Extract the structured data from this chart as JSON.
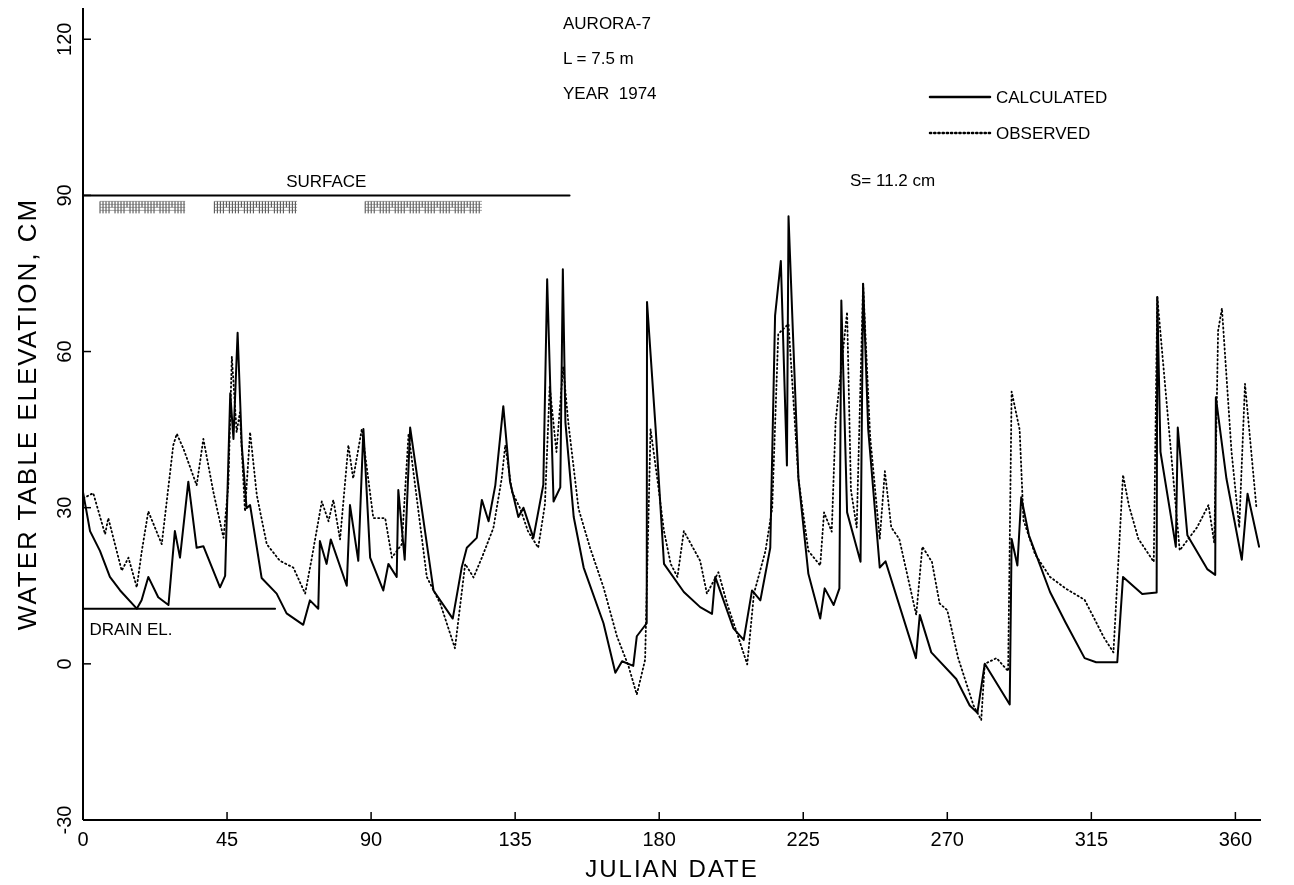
{
  "chart_data": {
    "type": "line",
    "xlabel": "JULIAN DATE",
    "ylabel": "WATER TABLE ELEVATION, CM",
    "xlim": [
      0,
      368
    ],
    "xticks": [
      0,
      45,
      90,
      135,
      180,
      225,
      270,
      315,
      360
    ],
    "ylim": [
      -30,
      126
    ],
    "yticks": [
      -30,
      0,
      30,
      60,
      90,
      120
    ],
    "legend": "top right",
    "grid": false,
    "annotations": [
      "AURORA-7",
      "L = 7.5 m",
      "YEAR  1974",
      "S= 11.2 cm",
      {
        "text": "SURFACE",
        "x": 76,
        "y": 90
      },
      {
        "text": "DRAIN EL.",
        "x": 2,
        "y": 10.6
      }
    ],
    "series": [
      {
        "name": "CALCULATED",
        "color": "#000000",
        "line_style": "solid",
        "x": [
          0,
          2.2,
          5.3,
          8.4,
          11.6,
          16.8,
          18.3,
          20.4,
          23.5,
          26.7,
          28.7,
          30.3,
          32.9,
          35.5,
          37.6,
          42.8,
          44.4,
          46,
          47,
          48.3,
          49.6,
          51.1,
          52.2,
          55.8,
          60.5,
          63.6,
          68.8,
          70.9,
          73.5,
          74,
          76.1,
          77.4,
          82.4,
          83.4,
          86,
          87.6,
          89.7,
          93.8,
          95.4,
          98,
          98.5,
          100.5,
          102.2,
          109.5,
          115.5,
          118.3,
          119.9,
          123,
          124.6,
          126.7,
          128.8,
          131.3,
          133.4,
          136,
          137.6,
          140.7,
          143.8,
          145,
          147,
          149.1,
          149.9,
          150.7,
          153.3,
          156.4,
          162.6,
          166.3,
          168.4,
          171.9,
          173,
          176.1,
          176.2,
          178.9,
          181.5,
          187.7,
          192.8,
          196.5,
          197.5,
          203.2,
          206.4,
          209,
          211.6,
          214.7,
          216.2,
          218,
          219.9,
          220.4,
          223.5,
          226.6,
          230.3,
          231.7,
          234.5,
          236.3,
          236.9,
          238.7,
          242.9,
          243.7,
          245.3,
          248.9,
          250.7,
          260.2,
          261.4,
          265,
          272.8,
          277,
          279.4,
          281.7,
          289.5,
          290.1,
          291.9,
          293.1,
          295.5,
          302.1,
          306.9,
          312.9,
          316.5,
          323.1,
          324.9,
          330.9,
          335.4,
          335.6,
          336.6,
          341.4,
          342,
          345,
          351.2,
          353.7,
          353.9,
          357.2,
          362,
          363.8,
          367.4
        ],
        "values": [
          33,
          25.5,
          21.7,
          16.7,
          14.1,
          10.6,
          12.2,
          16.7,
          12.8,
          11.3,
          25.5,
          20.4,
          35,
          22.3,
          22.6,
          14.7,
          16.9,
          52,
          43.2,
          63.6,
          42,
          29.9,
          30.5,
          16.5,
          13.5,
          9.7,
          7.5,
          12.2,
          10.6,
          23.6,
          19.2,
          23.9,
          15,
          30.5,
          19.8,
          45.1,
          20.4,
          14.1,
          19.2,
          16.7,
          33.4,
          20,
          45.4,
          14.1,
          8.7,
          18.5,
          22.3,
          24.2,
          31.5,
          27.4,
          34.3,
          49.5,
          35,
          28.2,
          30,
          24.2,
          34.4,
          73.9,
          31.2,
          33.9,
          75.8,
          46.4,
          28.2,
          18.5,
          7.8,
          -1.7,
          0.5,
          -0.4,
          5.3,
          7.8,
          69.5,
          45.1,
          19.2,
          13.8,
          10.9,
          9.6,
          16.7,
          6.8,
          4.6,
          14.1,
          12.2,
          22.3,
          66.9,
          77.4,
          38.1,
          86,
          35.6,
          17.3,
          8.7,
          14.5,
          11.3,
          14.5,
          69.8,
          29.1,
          19.6,
          73,
          45,
          18.5,
          19.7,
          1.1,
          9.4,
          2.2,
          -2.9,
          -8,
          -9.4,
          0,
          -7.8,
          24,
          18.9,
          32,
          24.7,
          13.8,
          8,
          1.1,
          0.3,
          0.3,
          16.7,
          13.4,
          13.7,
          70.5,
          40.7,
          22.5,
          45.4,
          24.7,
          18.2,
          17.1,
          51.2,
          35.6,
          20,
          32.7,
          22.5
        ]
      },
      {
        "name": "OBSERVED",
        "color": "#000000",
        "line_style": "dotted",
        "x": [
          0.1,
          3.2,
          6.9,
          7.9,
          12.1,
          14.2,
          16.8,
          18.3,
          20.4,
          24.6,
          28.2,
          29.3,
          31.4,
          35.5,
          37.6,
          40.7,
          43.9,
          45.4,
          46.5,
          48,
          49,
          50.6,
          52.2,
          54.3,
          57.4,
          61.5,
          65.7,
          69.4,
          71.5,
          74.6,
          76.7,
          78.2,
          80.3,
          82.9,
          84.4,
          87.1,
          90.7,
          94.4,
          96.5,
          99.6,
          101.7,
          107.4,
          111.6,
          116.2,
          119.4,
          122,
          124.6,
          128.2,
          130.8,
          131.9,
          134,
          136.6,
          139,
          142.2,
          144.3,
          145.8,
          147.9,
          150,
          151.6,
          154.8,
          158.4,
          162.6,
          166.8,
          170.4,
          173,
          175.6,
          177.3,
          179.4,
          181.5,
          183.6,
          185.7,
          187.7,
          192.8,
          194.9,
          198.5,
          201.2,
          204.3,
          207.5,
          209.6,
          213.2,
          215.3,
          217.2,
          220.4,
          223.5,
          226.6,
          230.3,
          231.5,
          233.9,
          235.1,
          238.7,
          239.9,
          241.7,
          243.7,
          245.9,
          248.9,
          250.5,
          252.5,
          255,
          260.3,
          262.2,
          265.2,
          267.6,
          270,
          273.4,
          278.2,
          280.6,
          281.7,
          285.4,
          289,
          290.1,
          292.6,
          293.8,
          297.4,
          302.1,
          306.9,
          312.9,
          316.5,
          318.9,
          321.9,
          324.9,
          326.7,
          329.7,
          334.5,
          335.6,
          342.6,
          348,
          351.6,
          353.4,
          354.6,
          355.8,
          358.8,
          361.2,
          363,
          366.6
        ],
        "values": [
          31.8,
          32.8,
          24.9,
          28,
          17.9,
          20.4,
          14.7,
          21.4,
          29.3,
          23,
          42,
          44.2,
          41.3,
          34.3,
          43.2,
          33.1,
          24.2,
          34.3,
          59,
          44.5,
          48.3,
          29.3,
          44.5,
          32.4,
          23,
          19.8,
          18.5,
          13.5,
          20.4,
          31.2,
          27.4,
          31.5,
          23.9,
          42,
          35.6,
          45.1,
          28,
          28,
          20.4,
          23,
          44.2,
          16.7,
          11.6,
          3,
          19.2,
          16.6,
          20.4,
          26.1,
          35.6,
          42,
          33.1,
          29.8,
          25.5,
          22.3,
          30.6,
          53.3,
          40.7,
          57.1,
          46.4,
          29.8,
          22.3,
          14.7,
          5.3,
          -0.4,
          -5.9,
          0.8,
          45.1,
          35.6,
          25.5,
          19.2,
          16.7,
          25.5,
          19.8,
          13.5,
          17.6,
          11.6,
          5.9,
          -0.1,
          13.5,
          21.7,
          29.9,
          63.4,
          65.3,
          35.6,
          21.7,
          18.9,
          29.1,
          25.4,
          46.5,
          67.6,
          33.4,
          26.2,
          73,
          43.7,
          24,
          37,
          26.2,
          24,
          9.4,
          22.5,
          19.6,
          11.6,
          10.3,
          1.1,
          -8,
          -10.8,
          0,
          1.1,
          -1.4,
          52.3,
          45,
          27.6,
          21.1,
          16.7,
          14.5,
          12.3,
          8,
          5.1,
          2.2,
          36.3,
          30.5,
          24,
          19.6,
          70.5,
          21.8,
          26.2,
          30.5,
          23.2,
          64,
          68.3,
          40.7,
          26.2,
          53.8,
          29.8
        ]
      },
      {
        "color": "#000000",
        "line_style": "solid",
        "x": [
          0,
          152
        ],
        "values": [
          90,
          90
        ]
      },
      {
        "color": "#000000",
        "line_style": "solid",
        "x": [
          0,
          60
        ],
        "values": [
          10.6,
          10.6
        ]
      }
    ]
  }
}
